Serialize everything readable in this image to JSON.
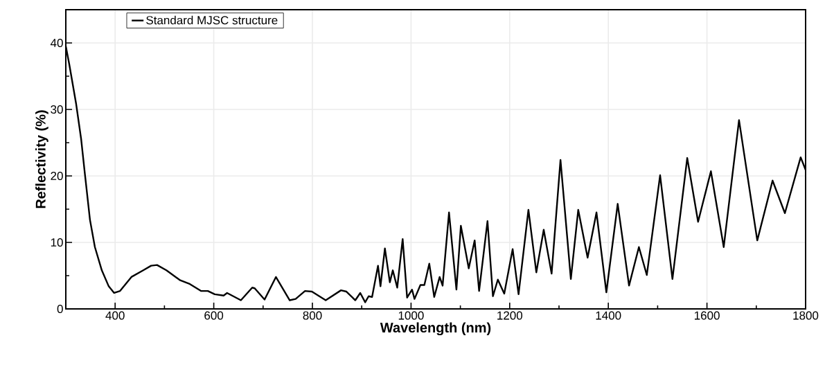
{
  "chart_data": {
    "type": "line",
    "xlabel": "Wavelength (nm)",
    "ylabel": "Reflectivity (%)",
    "xlim": [
      300,
      1800
    ],
    "ylim": [
      0,
      45
    ],
    "xticks": [
      400,
      {
        "value": 500,
        "label": null
      },
      600,
      {
        "value": 700,
        "label": null
      },
      800,
      {
        "value": 900,
        "label": null
      },
      1000,
      {
        "value": 1100,
        "label": null
      },
      1200,
      {
        "value": 1300,
        "label": null
      },
      1400,
      {
        "value": 1500,
        "label": null
      },
      1600,
      {
        "value": 1700,
        "label": null
      },
      1800
    ],
    "yticks": [
      0,
      {
        "value": 5,
        "label": null
      },
      10,
      {
        "value": 15,
        "label": null
      },
      20,
      {
        "value": 25,
        "label": null
      },
      30,
      {
        "value": 35,
        "label": null
      },
      40
    ],
    "grid": true,
    "legend": "top left",
    "marker": "none",
    "line_style": "solid",
    "series": [
      {
        "name": "Standard MJSC structure",
        "color": "#000000",
        "x": [
          300,
          307,
          321,
          331,
          339,
          349,
          359,
          373,
          387,
          398,
          410,
          433,
          457,
          473,
          485,
          504,
          532,
          550,
          574,
          588,
          602,
          620,
          627,
          655,
          678,
          683,
          703,
          726,
          754,
          766,
          785,
          799,
          827,
          858,
          869,
          887,
          897,
          907,
          914,
          921,
          933,
          938,
          947,
          957,
          963,
          972,
          983,
          992,
          1002,
          1007,
          1019,
          1027,
          1037,
          1047,
          1058,
          1064,
          1077,
          1092,
          1101,
          1117,
          1129,
          1138,
          1155,
          1166,
          1176,
          1189,
          1206,
          1218,
          1238,
          1254,
          1269,
          1285,
          1303,
          1324,
          1339,
          1358,
          1376,
          1396,
          1419,
          1442,
          1462,
          1478,
          1505,
          1530,
          1560,
          1582,
          1608,
          1634,
          1665,
          1702,
          1733,
          1758,
          1790,
          1800
        ],
        "values": [
          39.5,
          36.8,
          30.8,
          25.6,
          20.1,
          13.4,
          9.3,
          5.8,
          3.4,
          2.4,
          2.7,
          4.8,
          5.8,
          6.5,
          6.6,
          5.8,
          4.3,
          3.8,
          2.7,
          2.7,
          2.2,
          2.0,
          2.4,
          1.3,
          3.2,
          3.1,
          1.4,
          4.8,
          1.3,
          1.5,
          2.7,
          2.6,
          1.3,
          2.8,
          2.6,
          1.3,
          2.4,
          1.0,
          1.9,
          1.8,
          6.5,
          3.4,
          9.1,
          4.0,
          5.8,
          3.2,
          10.5,
          1.7,
          2.9,
          1.5,
          3.6,
          3.6,
          6.8,
          1.8,
          4.8,
          3.5,
          14.5,
          2.9,
          12.5,
          6.1,
          10.3,
          2.7,
          13.2,
          1.9,
          4.4,
          2.3,
          9.0,
          2.2,
          14.9,
          5.5,
          11.9,
          5.3,
          22.4,
          4.5,
          14.9,
          7.7,
          14.5,
          2.5,
          15.8,
          3.5,
          9.3,
          5.1,
          20.1,
          4.5,
          22.7,
          13.1,
          20.7,
          9.3,
          28.4,
          10.3,
          19.3,
          14.4,
          22.8,
          20.9
        ]
      }
    ]
  }
}
